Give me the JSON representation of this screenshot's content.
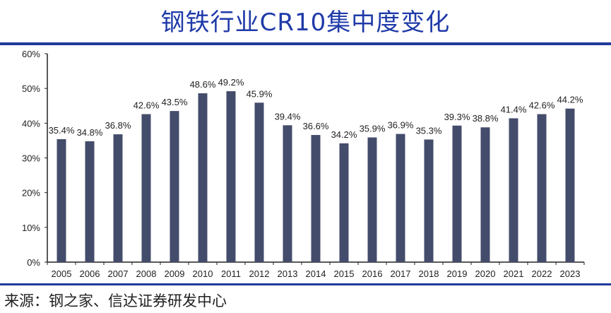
{
  "title": "钢铁行业CR10集中度变化",
  "source": "来源：钢之家、信达证券研发中心",
  "chart_data": {
    "type": "bar",
    "categories": [
      "2005",
      "2006",
      "2007",
      "2008",
      "2009",
      "2010",
      "2011",
      "2012",
      "2013",
      "2014",
      "2015",
      "2016",
      "2017",
      "2018",
      "2019",
      "2020",
      "2021",
      "2022",
      "2023"
    ],
    "values": [
      35.4,
      34.8,
      36.8,
      42.6,
      43.5,
      48.6,
      49.2,
      45.9,
      39.4,
      36.6,
      34.2,
      35.9,
      36.9,
      35.3,
      39.3,
      38.8,
      41.4,
      42.6,
      44.2
    ],
    "labels": [
      "35.4%",
      "34.8%",
      "36.8%",
      "42.6%",
      "43.5%",
      "48.6%",
      "49.2%",
      "45.9%",
      "39.4%",
      "36.6%",
      "34.2%",
      "35.9%",
      "36.9%",
      "35.3%",
      "39.3%",
      "38.8%",
      "41.4%",
      "42.6%",
      "44.2%"
    ],
    "yticks": [
      "0%",
      "10%",
      "20%",
      "30%",
      "40%",
      "50%",
      "60%"
    ],
    "ylim": [
      0,
      60
    ],
    "grid": false,
    "bar_color": "#444c6b"
  }
}
